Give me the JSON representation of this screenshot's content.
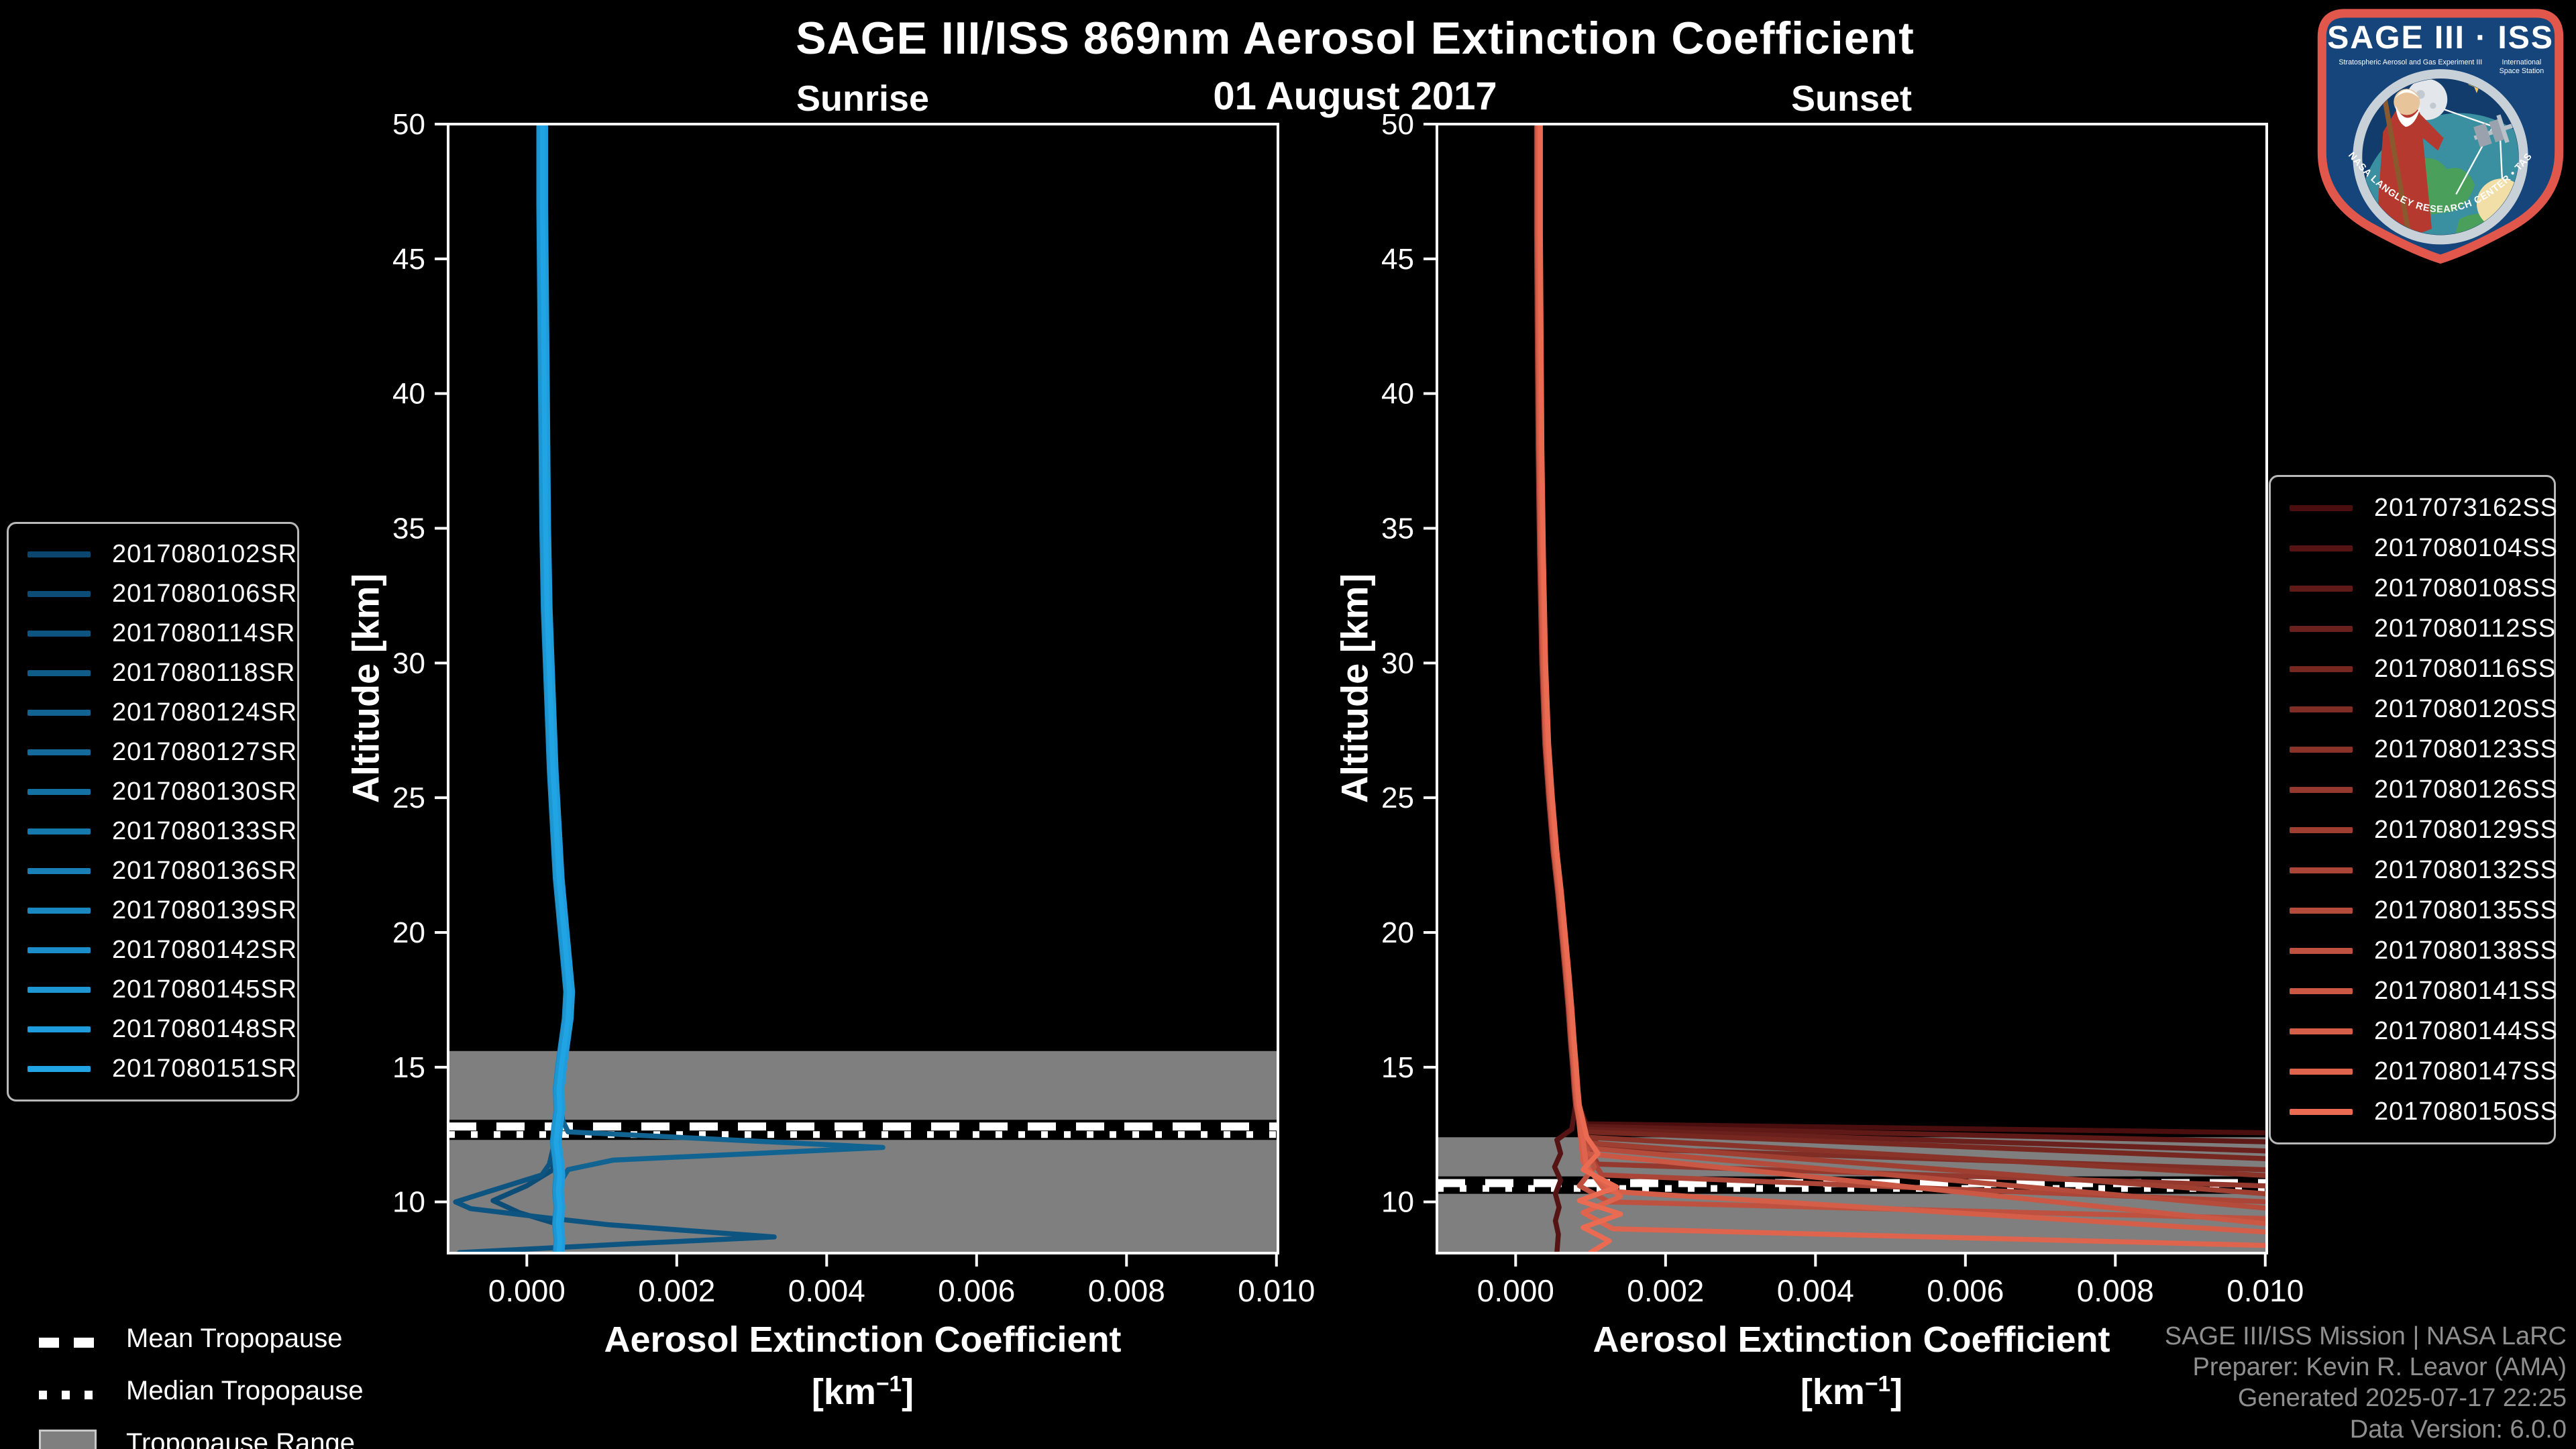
{
  "header": {
    "title": "SAGE III/ISS 869nm Aerosol Extinction Coefficient",
    "date": "01 August 2017"
  },
  "panels": [
    {
      "title": "Sunrise",
      "ylabel": "Altitude [km]",
      "xlabel_line1": "Aerosol Extinction Coefficient",
      "xlabel_unit_prefix": "[km",
      "xlabel_unit_sup": "−1",
      "xlabel_unit_suffix": "]"
    },
    {
      "title": "Sunset",
      "ylabel": "Altitude [km]",
      "xlabel_line1": "Aerosol Extinction Coefficient",
      "xlabel_unit_prefix": "[km",
      "xlabel_unit_sup": "−1",
      "xlabel_unit_suffix": "]"
    }
  ],
  "tropopause_legend": {
    "mean_label": "Mean Tropopause",
    "median_label": "Median Tropopause",
    "range_label": "Tropopause Range"
  },
  "credits": {
    "line1": "SAGE III/ISS Mission | NASA LaRC",
    "line2": "Preparer: Kevin R. Leavor (AMA)",
    "line3": "Generated 2025-07-17 22:25",
    "line4": "Data Version: 6.0.0"
  },
  "patch": {
    "title": "SAGE III · ISS",
    "sub_left": "Stratospheric Aerosol and Gas Experiment III",
    "sub_right_1": "International",
    "sub_right_2": "Space Station",
    "ring_text": "BALL • NASA LANGLEY RESEARCH CENTER • TAS-I • ESA"
  },
  "colors": {
    "background": "#000000",
    "frame": "#ffffff",
    "tropopause_range_fill": "#7f7f7f",
    "tropopause_line_white": "#ffffff",
    "tropopause_line_under": "#000000",
    "credits_gray": "#8f8f8f",
    "patch_border": "#e2574b",
    "patch_field": "#15457b",
    "sunrise_first": "#0a466e",
    "sunrise_last": "#20a4e4",
    "sunset_first": "#4a0e0e",
    "sunset_last": "#ea6a52"
  },
  "chart_data": [
    {
      "type": "line",
      "title": "Sunrise",
      "xlabel": "Aerosol Extinction Coefficient [km^-1]",
      "ylabel": "Altitude [km]",
      "xlim": [
        -0.00105,
        0.01002
      ],
      "ylim": [
        8.1,
        50
      ],
      "x_ticks": [
        0.0,
        0.002,
        0.004,
        0.006,
        0.008,
        0.01
      ],
      "x_tick_labels": [
        "0.000",
        "0.002",
        "0.004",
        "0.006",
        "0.008",
        "0.010"
      ],
      "y_ticks": [
        10,
        15,
        20,
        25,
        30,
        35,
        40,
        45,
        50
      ],
      "y_tick_labels": [
        "10",
        "15",
        "20",
        "25",
        "30",
        "35",
        "40",
        "45",
        "50"
      ],
      "grid": false,
      "legend_position": "outside-left",
      "tropopause": {
        "mean": 12.8,
        "median": 12.5,
        "range_top": 15.6,
        "range_bottom": 8.1
      },
      "base": [
        [
          0.0002,
          50
        ],
        [
          0.0002,
          47
        ],
        [
          0.00021,
          44
        ],
        [
          0.00022,
          41
        ],
        [
          0.00023,
          38
        ],
        [
          0.00024,
          35
        ],
        [
          0.00026,
          32
        ],
        [
          0.0003,
          29
        ],
        [
          0.00034,
          26
        ],
        [
          0.00038,
          24
        ],
        [
          0.00042,
          22
        ],
        [
          0.00047,
          20.5
        ],
        [
          0.00052,
          19
        ],
        [
          0.00056,
          17.8
        ],
        [
          0.00054,
          16.8
        ],
        [
          0.00049,
          15.8
        ],
        [
          0.00045,
          15
        ],
        [
          0.00042,
          14.2
        ],
        [
          0.00043,
          13.4
        ],
        [
          0.0004,
          12.8
        ],
        [
          0.00038,
          12.2
        ],
        [
          0.00041,
          11.6
        ],
        [
          0.00043,
          11
        ],
        [
          0.00041,
          10.4
        ],
        [
          0.00043,
          9.8
        ],
        [
          0.00041,
          9.2
        ],
        [
          0.00043,
          8.6
        ],
        [
          0.00042,
          8.1
        ]
      ],
      "series": [
        {
          "name": "2017080102SR",
          "color": "#0a466e",
          "dx": 0.0
        },
        {
          "name": "2017080106SR",
          "color": "#0c4d77",
          "dx": -3e-05,
          "tail_from": 11.6,
          "tail": [
            [
              0.00035,
              11.2
            ],
            [
              0.0,
              10.6
            ],
            [
              -0.00045,
              10.05
            ],
            [
              -0.0001,
              9.6
            ],
            [
              0.00038,
              9.2
            ],
            [
              0.0004,
              8.6
            ],
            [
              0.00041,
              8.1
            ]
          ]
        },
        {
          "name": "2017080114SR",
          "color": "#0d5480",
          "dx": 2e-05,
          "tail_from": 12.2,
          "tail": [
            [
              0.0003,
              11.4
            ],
            [
              0.0002,
              11.0
            ],
            [
              -0.00055,
              10.35
            ],
            [
              -0.00095,
              10.0
            ],
            [
              -0.00075,
              9.75
            ],
            [
              0.0003,
              9.4
            ],
            [
              0.0011,
              9.15
            ],
            [
              0.0033,
              8.7
            ],
            [
              0.0014,
              8.45
            ],
            [
              -0.0009,
              8.12
            ]
          ]
        },
        {
          "name": "2017080118SR",
          "color": "#0f5c89",
          "dx": -1e-05
        },
        {
          "name": "2017080124SR",
          "color": "#116392",
          "dx": 1e-05,
          "tail_from": 13.4,
          "tail": [
            [
              0.00048,
              13.0
            ],
            [
              0.00055,
              12.6
            ],
            [
              0.00475,
              12.02
            ],
            [
              0.00115,
              11.55
            ],
            [
              0.00055,
              11.2
            ],
            [
              0.00044,
              10.7
            ],
            [
              0.00042,
              10.1
            ],
            [
              0.00044,
              9.5
            ],
            [
              0.00042,
              8.9
            ],
            [
              0.00043,
              8.4
            ],
            [
              0.00042,
              8.1
            ]
          ]
        },
        {
          "name": "2017080127SR",
          "color": "#136a9b",
          "dx": 3e-05
        },
        {
          "name": "2017080130SR",
          "color": "#1471a4",
          "dx": -2e-05
        },
        {
          "name": "2017080133SR",
          "color": "#1679ae",
          "dx": 4e-05
        },
        {
          "name": "2017080136SR",
          "color": "#1880b7",
          "dx": 0.0,
          "tail_from": 12.8,
          "tail": [
            [
              0.00036,
              12.3
            ],
            [
              0.00044,
              11.7
            ],
            [
              0.00038,
              11.1
            ],
            [
              0.00045,
              10.5
            ],
            [
              0.00039,
              9.9
            ],
            [
              0.00046,
              9.3
            ],
            [
              0.0004,
              8.7
            ],
            [
              0.00044,
              8.1
            ]
          ]
        },
        {
          "name": "2017080139SR",
          "color": "#1987c0",
          "dx": -4e-05
        },
        {
          "name": "2017080142SR",
          "color": "#1b8ec9",
          "dx": 2e-05
        },
        {
          "name": "2017080145SR",
          "color": "#1d96d2",
          "dx": -3e-05
        },
        {
          "name": "2017080148SR",
          "color": "#1e9cdb",
          "dx": 5e-05
        },
        {
          "name": "2017080151SR",
          "color": "#20a4e4",
          "dx": 1e-05
        }
      ]
    },
    {
      "type": "line",
      "title": "Sunset",
      "xlabel": "Aerosol Extinction Coefficient [km^-1]",
      "ylabel": "Altitude [km]",
      "xlim": [
        -0.00105,
        0.01002
      ],
      "ylim": [
        8.1,
        50
      ],
      "x_ticks": [
        0.0,
        0.002,
        0.004,
        0.006,
        0.008,
        0.01
      ],
      "x_tick_labels": [
        "0.000",
        "0.002",
        "0.004",
        "0.006",
        "0.008",
        "0.010"
      ],
      "y_ticks": [
        10,
        15,
        20,
        25,
        30,
        35,
        40,
        45,
        50
      ],
      "y_tick_labels": [
        "10",
        "15",
        "20",
        "25",
        "30",
        "35",
        "40",
        "45",
        "50"
      ],
      "grid": false,
      "legend_position": "outside-right",
      "tropopause": {
        "mean": 10.7,
        "median": 10.5,
        "range_top": 12.4,
        "range_bottom": 8.1
      },
      "base": [
        [
          0.0003,
          50
        ],
        [
          0.0003,
          46
        ],
        [
          0.00031,
          42
        ],
        [
          0.00032,
          38
        ],
        [
          0.00034,
          34
        ],
        [
          0.00037,
          30
        ],
        [
          0.00041,
          27
        ],
        [
          0.00046,
          25
        ],
        [
          0.00052,
          23
        ],
        [
          0.00058,
          21.5
        ],
        [
          0.00063,
          20
        ],
        [
          0.00068,
          18.5
        ],
        [
          0.00072,
          17.2
        ],
        [
          0.00075,
          16
        ],
        [
          0.00078,
          15
        ],
        [
          0.0008,
          14.2
        ],
        [
          0.00082,
          13.6
        ],
        [
          0.00085,
          13.1
        ]
      ],
      "series": [
        {
          "name": "2017073162SS",
          "color": "#4a0e0e",
          "dx": 0.0,
          "tail_from": 13.1,
          "tail": [
            [
              0.0009,
              12.9
            ],
            [
              0.0105,
              12.55
            ]
          ]
        },
        {
          "name": "2017080104SS",
          "color": "#551413",
          "dx": -2e-05,
          "tail_from": 13.1,
          "tail": [
            [
              0.00075,
              12.7
            ],
            [
              0.00055,
              12.3
            ],
            [
              0.0006,
              11.8
            ],
            [
              0.00052,
              11.3
            ],
            [
              0.0006,
              10.8
            ],
            [
              0.00053,
              10.3
            ],
            [
              0.00058,
              9.8
            ],
            [
              0.00053,
              9.3
            ],
            [
              0.00057,
              8.8
            ],
            [
              0.00055,
              8.1
            ]
          ]
        },
        {
          "name": "2017080108SS",
          "color": "#5f1a17",
          "dx": 2e-05,
          "tail_from": 13.1,
          "tail": [
            [
              0.00095,
              12.8
            ],
            [
              0.0105,
              12.2
            ]
          ]
        },
        {
          "name": "2017080112SS",
          "color": "#6a201c",
          "dx": -1e-05,
          "tail_from": 13.1,
          "tail": [
            [
              0.0009,
              12.7
            ],
            [
              0.0105,
              11.85
            ]
          ]
        },
        {
          "name": "2017080116SS",
          "color": "#752720",
          "dx": 1e-05,
          "tail_from": 13.1,
          "tail": [
            [
              0.00092,
              12.6
            ],
            [
              0.0105,
              11.55
            ]
          ]
        },
        {
          "name": "2017080120SS",
          "color": "#7f2d25",
          "dx": 0.0,
          "tail_from": 13.1,
          "tail": [
            [
              0.0009,
              12.5
            ],
            [
              0.0012,
              12.0
            ],
            [
              0.0105,
              11.15
            ]
          ]
        },
        {
          "name": "2017080123SS",
          "color": "#8a3329",
          "dx": 2e-05,
          "tail_from": 13.1,
          "tail": [
            [
              0.00095,
              12.4
            ],
            [
              0.0105,
              10.9
            ]
          ]
        },
        {
          "name": "2017080126SS",
          "color": "#95392e",
          "dx": -2e-05,
          "tail_from": 13.1,
          "tail": [
            [
              0.0009,
              12.3
            ],
            [
              0.0011,
              11.4
            ],
            [
              0.0105,
              10.55
            ]
          ]
        },
        {
          "name": "2017080129SS",
          "color": "#9f3f32",
          "dx": 1e-05,
          "tail_from": 13.1,
          "tail": [
            [
              0.00092,
              12.2
            ],
            [
              0.0105,
              10.2
            ]
          ]
        },
        {
          "name": "2017080132SS",
          "color": "#aa4537",
          "dx": 0.0,
          "tail_from": 13.1,
          "tail": [
            [
              0.0009,
              12.1
            ],
            [
              0.00115,
              11.0
            ],
            [
              0.0105,
              9.95
            ]
          ]
        },
        {
          "name": "2017080135SS",
          "color": "#b54b3b",
          "dx": 2e-05,
          "tail_from": 13.1,
          "tail": [
            [
              0.00095,
              12.0
            ],
            [
              0.0105,
              9.65
            ]
          ]
        },
        {
          "name": "2017080138SS",
          "color": "#bf5140",
          "dx": -1e-05,
          "tail_from": 13.1,
          "tail": [
            [
              0.0009,
              12.2
            ],
            [
              0.00105,
              11.3
            ],
            [
              0.00085,
              10.6
            ],
            [
              0.00125,
              10.0
            ],
            [
              0.0105,
              9.35
            ]
          ]
        },
        {
          "name": "2017080141SS",
          "color": "#ca5844",
          "dx": 1e-05,
          "tail_from": 13.1,
          "tail": [
            [
              0.00092,
              11.8
            ],
            [
              0.0105,
              9.05
            ]
          ]
        },
        {
          "name": "2017080144SS",
          "color": "#d55e49",
          "dx": 0.0,
          "tail_from": 13.1,
          "tail": [
            [
              0.0009,
              11.5
            ],
            [
              0.0012,
              10.4
            ],
            [
              0.0105,
              8.8
            ]
          ]
        },
        {
          "name": "2017080147SS",
          "color": "#df644d",
          "dx": 2e-05,
          "tail_from": 13.1,
          "tail": [
            [
              0.00095,
              11.2
            ],
            [
              0.0014,
              10.2
            ],
            [
              0.0009,
              9.6
            ],
            [
              0.0013,
              9.0
            ],
            [
              0.0105,
              8.35
            ]
          ]
        },
        {
          "name": "2017080150SS",
          "color": "#ea6a52",
          "dx": 3e-05,
          "tail_from": 13.1,
          "tail": [
            [
              0.00095,
              12.4
            ],
            [
              0.0011,
              11.8
            ],
            [
              0.0009,
              11.2
            ],
            [
              0.00135,
              10.55
            ],
            [
              0.00085,
              10.05
            ],
            [
              0.0014,
              9.55
            ],
            [
              0.0009,
              9.05
            ],
            [
              0.00125,
              8.55
            ],
            [
              0.001,
              8.12
            ]
          ]
        }
      ]
    }
  ]
}
